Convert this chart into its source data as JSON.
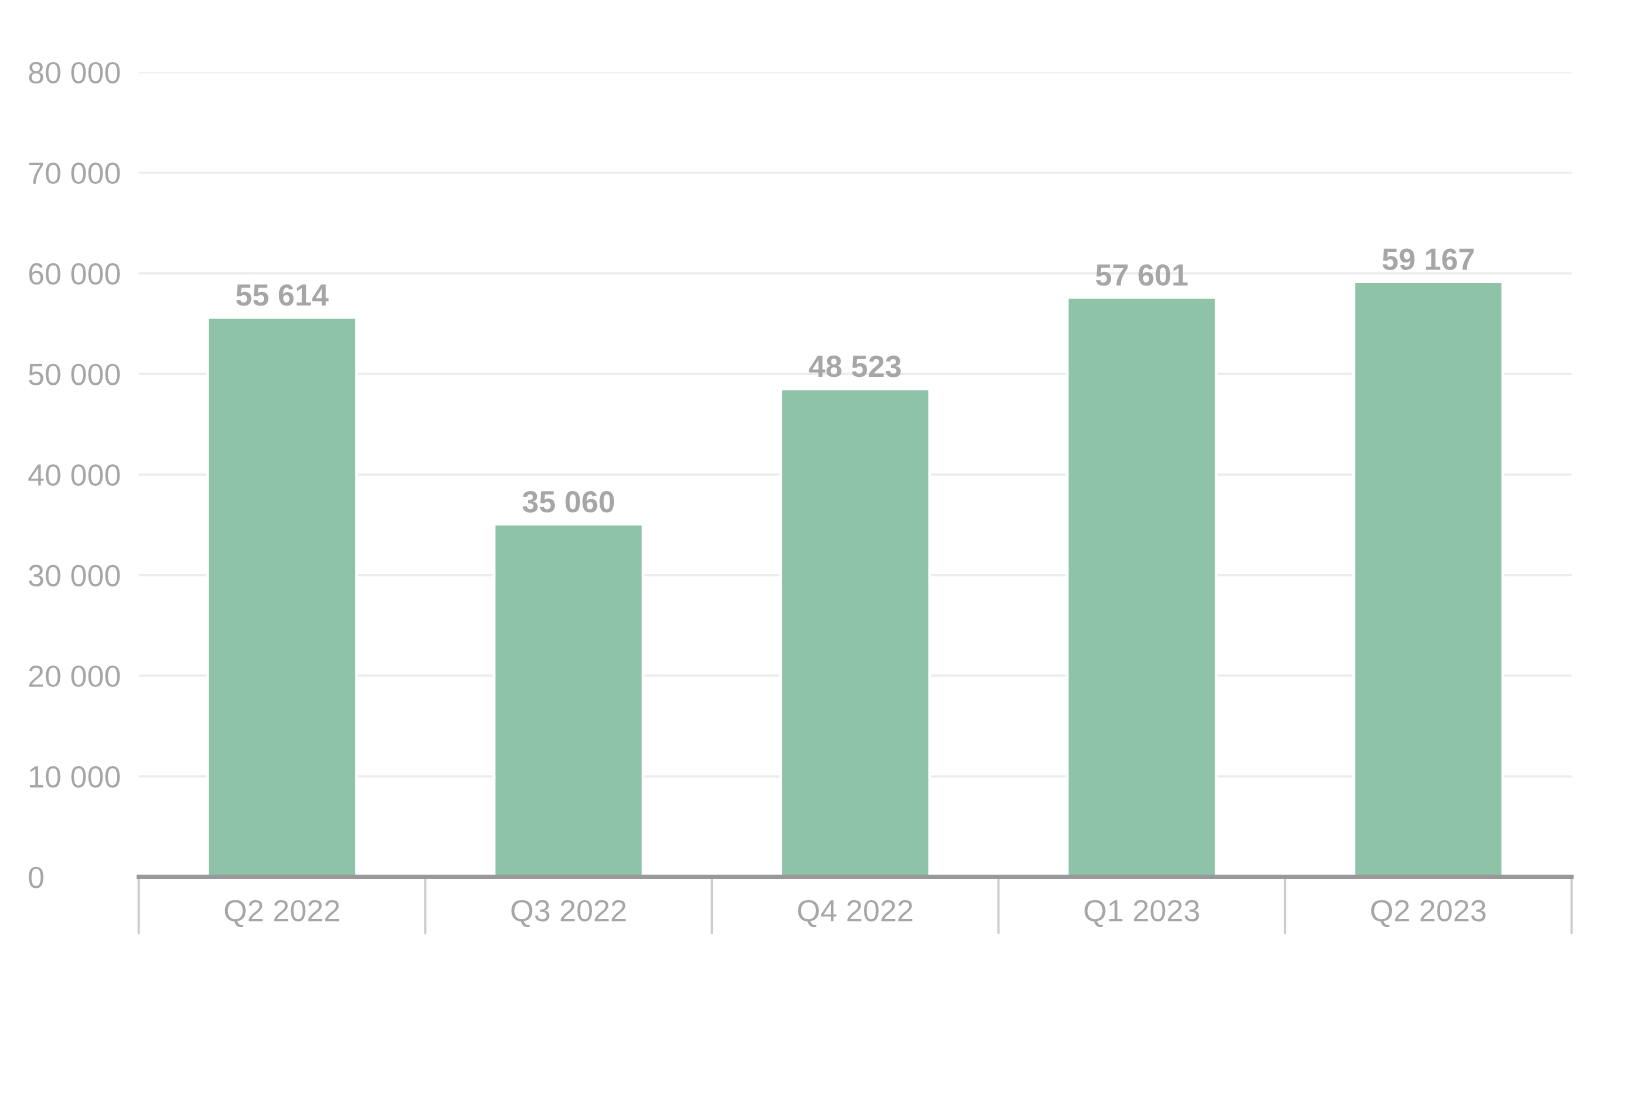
{
  "chart_data": {
    "type": "bar",
    "categories": [
      "Q2 2022",
      "Q3 2022",
      "Q4 2022",
      "Q1 2023",
      "Q2 2023"
    ],
    "values": [
      55614,
      35060,
      48523,
      57601,
      59167
    ],
    "value_labels": [
      "55 614",
      "35 060",
      "48 523",
      "57 601",
      "59 167"
    ],
    "color": "#8fc3a7",
    "ylim": [
      0,
      80000
    ],
    "yticks": [
      {
        "value": 0,
        "label": "0"
      },
      {
        "value": 10000,
        "label": "10 000"
      },
      {
        "value": 20000,
        "label": "20 000"
      },
      {
        "value": 30000,
        "label": "30 000"
      },
      {
        "value": 40000,
        "label": "40 000"
      },
      {
        "value": 50000,
        "label": "50 000"
      },
      {
        "value": 60000,
        "label": "60 000"
      },
      {
        "value": 70000,
        "label": "70 000"
      },
      {
        "value": 80000,
        "label": "80 000"
      }
    ],
    "grid": "y"
  }
}
